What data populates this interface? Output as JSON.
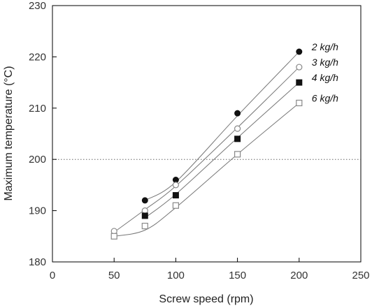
{
  "chart_data": {
    "type": "scatter",
    "xlabel": "Screw speed (rpm)",
    "ylabel": "Maximum temperature (°C)",
    "xlim": [
      0,
      250
    ],
    "ylim": [
      180,
      230
    ],
    "xticks": [
      0,
      50,
      100,
      150,
      200,
      250
    ],
    "yticks": [
      180,
      190,
      200,
      210,
      220,
      230
    ],
    "reference_line": {
      "y": 200,
      "style": "dotted"
    },
    "grid": false,
    "series": [
      {
        "name": "2 kg/h",
        "marker": "filled-circle",
        "x": [
          75,
          100,
          150,
          200
        ],
        "y": [
          192,
          196,
          209,
          221
        ],
        "curve": [
          [
            75,
            192
          ],
          [
            100,
            195.6
          ],
          [
            150,
            208.5
          ],
          [
            200,
            221
          ]
        ]
      },
      {
        "name": "3 kg/h",
        "marker": "open-circle",
        "x": [
          50,
          75,
          100,
          150,
          200
        ],
        "y": [
          186,
          190,
          195,
          206,
          218
        ],
        "curve": [
          [
            50,
            185.8
          ],
          [
            75,
            190.2
          ],
          [
            100,
            194.8
          ],
          [
            150,
            206.2
          ],
          [
            200,
            218
          ]
        ]
      },
      {
        "name": "4 kg/h",
        "marker": "filled-square",
        "x": [
          75,
          100,
          150,
          200
        ],
        "y": [
          189,
          193,
          204,
          215
        ],
        "curve": [
          [
            75,
            188.6
          ],
          [
            100,
            193.2
          ],
          [
            150,
            204.2
          ],
          [
            200,
            215
          ]
        ]
      },
      {
        "name": "6 kg/h",
        "marker": "open-square",
        "x": [
          50,
          75,
          100,
          150,
          200
        ],
        "y": [
          185,
          187,
          191,
          201,
          211
        ],
        "curve": [
          [
            50,
            185
          ],
          [
            75,
            186.2
          ],
          [
            100,
            190.6
          ],
          [
            150,
            201
          ],
          [
            200,
            211
          ]
        ]
      }
    ],
    "colors": {
      "marker": "#111111",
      "open_marker": "#888888",
      "line": "#777777",
      "reference": "#666666",
      "axis": "#000000"
    }
  }
}
